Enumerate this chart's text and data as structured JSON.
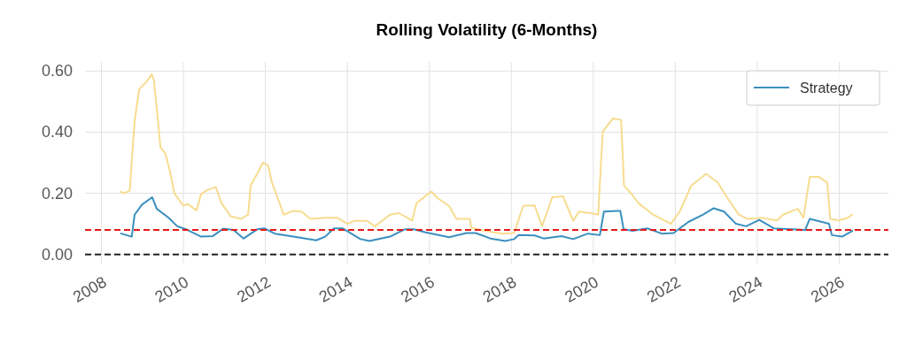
{
  "chart_data": {
    "type": "line",
    "title": "Rolling Volatility (6-Months)",
    "xlim": [
      2007.6,
      2027.2
    ],
    "xticks": [
      2008,
      2010,
      2012,
      2014,
      2016,
      2018,
      2020,
      2022,
      2024,
      2026
    ],
    "ylim": [
      -0.03,
      0.63
    ],
    "yticks": [
      {
        "value": 0,
        "label": "0.00"
      },
      {
        "value": 0.2,
        "label": "0.20"
      },
      {
        "value": 0.4,
        "label": "0.40"
      },
      {
        "value": 0.6,
        "label": "0.60"
      }
    ],
    "grid": true,
    "legend": "top right",
    "line_style": "solid",
    "marker": "none",
    "ref_lines": [
      {
        "axis": "y",
        "value": 0.08,
        "color": "#e41a1c",
        "line_style": "dashed"
      },
      {
        "axis": "y",
        "value": 0,
        "color": "#222222",
        "line_style": "dashed"
      }
    ],
    "series": [
      {
        "name": "Strategy",
        "color": "#3a8fbf",
        "x": [
          2008.48,
          2008.74,
          2008.81,
          2008.99,
          2009.24,
          2009.35,
          2009.64,
          2009.85,
          2010.07,
          2010.43,
          2010.72,
          2010.97,
          2011.22,
          2011.47,
          2011.8,
          2011.98,
          2012.23,
          2012.88,
          2013.24,
          2013.46,
          2013.67,
          2013.89,
          2014.32,
          2014.54,
          2015.04,
          2015.4,
          2015.62,
          2015.91,
          2016.48,
          2016.91,
          2017.13,
          2017.49,
          2017.85,
          2018.07,
          2018.18,
          2018.57,
          2018.79,
          2019.22,
          2019.51,
          2019.87,
          2020.16,
          2020.26,
          2020.59,
          2020.66,
          2020.74,
          2020.96,
          2021.32,
          2021.67,
          2021.96,
          2022.32,
          2022.68,
          2022.94,
          2023.19,
          2023.48,
          2023.73,
          2024.05,
          2024.41,
          2024.84,
          2025.17,
          2025.28,
          2025.75,
          2025.82,
          2026.07,
          2026.32
        ],
        "values": [
          0.068,
          0.058,
          0.13,
          0.163,
          0.187,
          0.149,
          0.12,
          0.092,
          0.082,
          0.058,
          0.06,
          0.084,
          0.08,
          0.052,
          0.082,
          0.085,
          0.068,
          0.054,
          0.046,
          0.058,
          0.085,
          0.085,
          0.05,
          0.044,
          0.058,
          0.082,
          0.082,
          0.072,
          0.056,
          0.07,
          0.07,
          0.052,
          0.044,
          0.05,
          0.063,
          0.062,
          0.052,
          0.06,
          0.05,
          0.068,
          0.063,
          0.14,
          0.142,
          0.142,
          0.082,
          0.077,
          0.085,
          0.068,
          0.07,
          0.106,
          0.13,
          0.151,
          0.14,
          0.1,
          0.092,
          0.113,
          0.085,
          0.082,
          0.08,
          0.116,
          0.1,
          0.063,
          0.058,
          0.077
        ]
      },
      {
        "color": "#f7dc8f",
        "x": [
          2008.48,
          2008.55,
          2008.69,
          2008.81,
          2008.92,
          2009.1,
          2009.23,
          2009.28,
          2009.38,
          2009.44,
          2009.56,
          2009.67,
          2009.78,
          2010.0,
          2010.1,
          2010.32,
          2010.43,
          2010.57,
          2010.79,
          2010.93,
          2011.15,
          2011.4,
          2011.58,
          2011.64,
          2011.8,
          2011.94,
          2012.07,
          2012.16,
          2012.45,
          2012.66,
          2012.88,
          2013.1,
          2013.46,
          2013.75,
          2014.0,
          2014.18,
          2014.47,
          2014.68,
          2015.04,
          2015.26,
          2015.58,
          2015.69,
          2016.05,
          2016.19,
          2016.48,
          2016.66,
          2016.99,
          2017.02,
          2017.35,
          2017.78,
          2018.07,
          2018.29,
          2018.57,
          2018.75,
          2019.0,
          2019.26,
          2019.51,
          2019.65,
          2019.94,
          2020.12,
          2020.23,
          2020.48,
          2020.68,
          2020.75,
          2020.92,
          2021.1,
          2021.46,
          2021.74,
          2021.89,
          2022.11,
          2022.39,
          2022.75,
          2023.04,
          2023.26,
          2023.55,
          2023.76,
          2024.12,
          2024.48,
          2024.63,
          2024.99,
          2025.13,
          2025.28,
          2025.5,
          2025.71,
          2025.78,
          2025.99,
          2026.21,
          2026.32
        ],
        "values": [
          0.205,
          0.2,
          0.208,
          0.436,
          0.54,
          0.565,
          0.589,
          0.57,
          0.436,
          0.35,
          0.33,
          0.273,
          0.2,
          0.159,
          0.165,
          0.144,
          0.197,
          0.21,
          0.22,
          0.168,
          0.125,
          0.116,
          0.13,
          0.225,
          0.264,
          0.3,
          0.29,
          0.235,
          0.13,
          0.142,
          0.14,
          0.116,
          0.12,
          0.12,
          0.1,
          0.11,
          0.11,
          0.092,
          0.13,
          0.135,
          0.111,
          0.168,
          0.206,
          0.185,
          0.159,
          0.116,
          0.116,
          0.087,
          0.077,
          0.068,
          0.07,
          0.159,
          0.16,
          0.092,
          0.187,
          0.19,
          0.11,
          0.14,
          0.135,
          0.13,
          0.402,
          0.445,
          0.44,
          0.225,
          0.2,
          0.168,
          0.13,
          0.111,
          0.1,
          0.14,
          0.225,
          0.264,
          0.235,
          0.187,
          0.13,
          0.116,
          0.12,
          0.111,
          0.13,
          0.149,
          0.12,
          0.254,
          0.254,
          0.235,
          0.116,
          0.111,
          0.12,
          0.13
        ]
      }
    ]
  }
}
